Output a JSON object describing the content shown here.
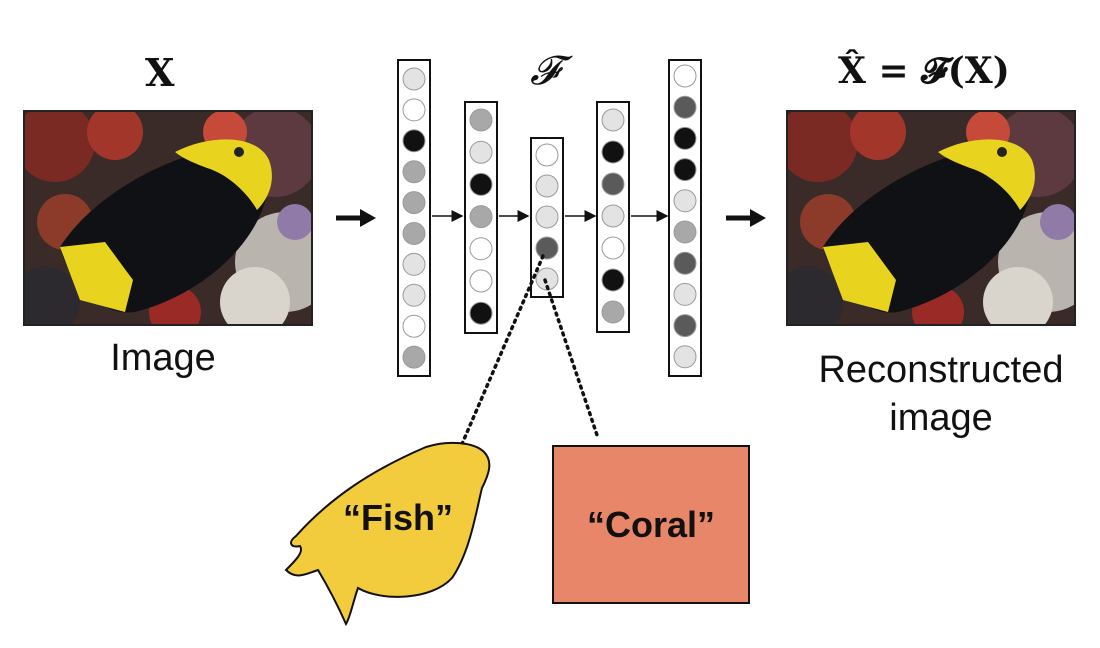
{
  "input": {
    "symbol": "X",
    "caption": "Image"
  },
  "encoder": {
    "symbol": "𝓕"
  },
  "output": {
    "symbol": "X̂ = 𝓕(X)",
    "caption_line1": "Reconstructed",
    "caption_line2": "image"
  },
  "concepts": {
    "fish": "“Fish”",
    "coral": "“Coral”"
  },
  "colors": {
    "fish_fill": "#F2CC3D",
    "coral_fill": "#E8866A",
    "node_black": "#111111",
    "node_dark": "#5a5a5a",
    "node_mid": "#a8a8a8",
    "node_light": "#e3e3e3",
    "node_white": "#ffffff"
  },
  "layers": [
    [
      "light",
      "white",
      "black",
      "mid",
      "mid",
      "mid",
      "light",
      "light",
      "white",
      "mid"
    ],
    [
      "mid",
      "light",
      "black",
      "mid",
      "white",
      "white",
      "black"
    ],
    [
      "white",
      "light",
      "light",
      "dark",
      "light"
    ],
    [
      "light",
      "black",
      "dark",
      "light",
      "white",
      "black",
      "mid"
    ],
    [
      "white",
      "dark",
      "black",
      "black",
      "light",
      "mid",
      "dark",
      "light",
      "dark",
      "light"
    ]
  ]
}
